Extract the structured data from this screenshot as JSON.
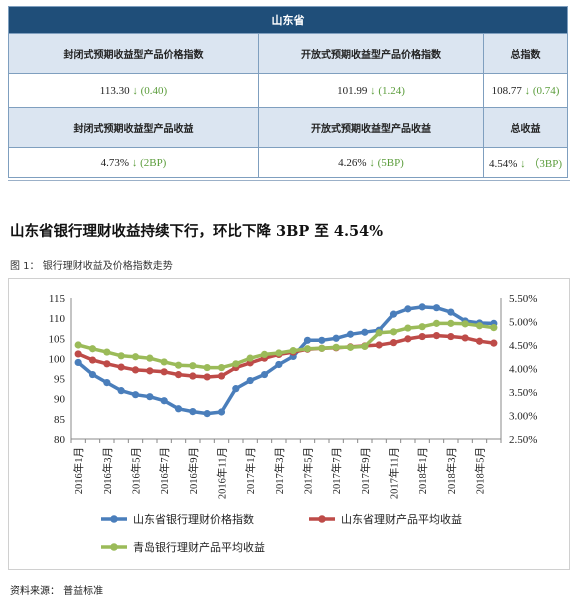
{
  "table": {
    "region": "山东省",
    "headers1": [
      "封闭式预期收益型产品价格指数",
      "开放式预期收益型产品价格指数",
      "总指数"
    ],
    "values1": [
      {
        "value": "113.30",
        "arrow": "↓",
        "change": "(0.40)"
      },
      {
        "value": "101.99",
        "arrow": "↓",
        "change": "(1.24)"
      },
      {
        "value": "108.77",
        "arrow": "↓",
        "change": "(0.74)"
      }
    ],
    "headers2": [
      "封闭式预期收益型产品收益",
      "开放式预期收益型产品收益",
      "总收益"
    ],
    "values2": [
      {
        "value": "4.73%",
        "arrow": "↓",
        "change": "(2BP)"
      },
      {
        "value": "4.26%",
        "arrow": "↓",
        "change": "(5BP)"
      },
      {
        "value": "4.54%",
        "arrow": "↓",
        "change": "（3BP)"
      }
    ]
  },
  "headline": "山东省银行理财收益持续下行，环比下降 3BP 至 4.54%",
  "figure_caption": "图 1：  银行理财收益及价格指数走势",
  "source": "资料来源：  普益标准",
  "colors": {
    "header_bg": "#1f4e79",
    "label_bg": "#dbe5f1",
    "down_green": "#5a9c3a",
    "series_blue": "#4a7ebb",
    "series_red": "#be4b48",
    "series_green": "#9bbb59"
  },
  "chart_data": {
    "type": "line",
    "x": [
      "2016年1月",
      "2016年2月",
      "2016年3月",
      "2016年4月",
      "2016年5月",
      "2016年6月",
      "2016年7月",
      "2016年8月",
      "2016年9月",
      "2016年10月",
      "2016年11月",
      "2016年12月",
      "2017年1月",
      "2017年2月",
      "2017年3月",
      "2017年4月",
      "2017年5月",
      "2017年6月",
      "2017年7月",
      "2017年8月",
      "2017年9月",
      "2017年10月",
      "2017年11月",
      "2017年12月",
      "2018年1月",
      "2018年2月",
      "2018年3月",
      "2018年4月",
      "2018年5月",
      "2018年6月"
    ],
    "x_tick_labels": [
      "2016年1月",
      "2016年3月",
      "2016年5月",
      "2016年7月",
      "2016年9月",
      "2016年11月",
      "2017年1月",
      "2017年3月",
      "2017年5月",
      "2017年7月",
      "2017年9月",
      "2017年11月",
      "2018年1月",
      "2018年3月",
      "2018年5月"
    ],
    "ylim_left": [
      80,
      115
    ],
    "yticks_left": [
      "80",
      "85",
      "90",
      "95",
      "100",
      "105",
      "110",
      "115"
    ],
    "ylim_right": [
      2.5,
      5.5
    ],
    "yticks_right": [
      "2.50%",
      "3.00%",
      "3.50%",
      "4.00%",
      "4.50%",
      "5.00%",
      "5.50%"
    ],
    "legend_position": "bottom",
    "series": [
      {
        "name": "山东省银行理财价格指数",
        "axis": "left",
        "color": "#4a7ebb",
        "values": [
          99.0,
          96.0,
          94.0,
          92.0,
          91.0,
          90.5,
          89.5,
          87.5,
          86.8,
          86.3,
          86.7,
          92.5,
          94.5,
          96.0,
          98.5,
          100.5,
          104.5,
          104.5,
          105.0,
          106.0,
          106.5,
          107.0,
          111.0,
          112.3,
          112.8,
          112.6,
          111.5,
          109.3,
          108.8,
          108.7
        ]
      },
      {
        "name": "山东省理财产品平均收益",
        "axis": "right",
        "color": "#be4b48",
        "values": [
          4.31,
          4.18,
          4.1,
          4.03,
          3.97,
          3.95,
          3.93,
          3.87,
          3.84,
          3.82,
          3.84,
          4.02,
          4.12,
          4.22,
          4.3,
          4.35,
          4.41,
          4.43,
          4.44,
          4.46,
          4.48,
          4.5,
          4.55,
          4.63,
          4.68,
          4.7,
          4.68,
          4.65,
          4.58,
          4.54
        ]
      },
      {
        "name": "青岛银行理财产品平均收益",
        "axis": "right",
        "color": "#9bbb59",
        "values": [
          4.5,
          4.42,
          4.35,
          4.27,
          4.25,
          4.22,
          4.14,
          4.07,
          4.06,
          4.02,
          4.02,
          4.1,
          4.22,
          4.3,
          4.33,
          4.38,
          4.42,
          4.43,
          4.45,
          4.45,
          4.47,
          4.76,
          4.78,
          4.86,
          4.89,
          4.96,
          4.96,
          4.95,
          4.91,
          4.87
        ]
      }
    ]
  }
}
